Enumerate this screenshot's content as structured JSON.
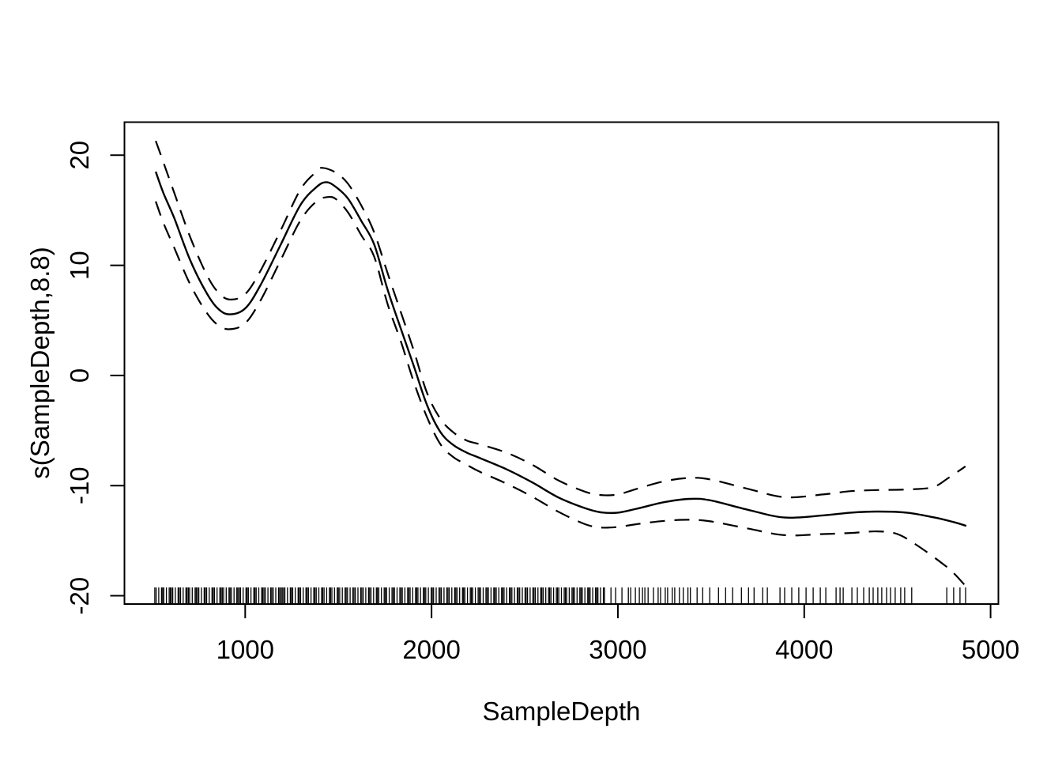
{
  "chart_data": {
    "type": "line",
    "title": "",
    "xlabel": "SampleDepth",
    "ylabel": "s(SampleDepth,8.8)",
    "x_ticks": [
      1000,
      2000,
      3000,
      4000,
      5000
    ],
    "y_ticks": [
      -20,
      -10,
      0,
      10,
      20
    ],
    "xlim": [
      352,
      5042
    ],
    "ylim": [
      -20.75,
      23.0
    ],
    "grid": false,
    "legend": "none",
    "colors": {
      "foreground": "#000000",
      "background": "#ffffff"
    },
    "series": [
      {
        "name": "smooth_fit",
        "linetype": "solid",
        "points": [
          [
            520,
            18.5
          ],
          [
            560,
            16.6
          ],
          [
            619,
            14.3
          ],
          [
            704,
            10.5
          ],
          [
            789,
            7.6
          ],
          [
            852,
            6.1
          ],
          [
            916,
            5.55
          ],
          [
            1001,
            6.1
          ],
          [
            1085,
            8.3
          ],
          [
            1191,
            11.9
          ],
          [
            1297,
            15.5
          ],
          [
            1382,
            17.1
          ],
          [
            1435,
            17.55
          ],
          [
            1488,
            17.1
          ],
          [
            1552,
            16.05
          ],
          [
            1624,
            14.0
          ],
          [
            1692,
            11.9
          ],
          [
            1764,
            7.8
          ],
          [
            1836,
            4.2
          ],
          [
            1904,
            0.9
          ],
          [
            1976,
            -2.7
          ],
          [
            2048,
            -5.15
          ],
          [
            2116,
            -6.3
          ],
          [
            2188,
            -7.0
          ],
          [
            2260,
            -7.5
          ],
          [
            2400,
            -8.5
          ],
          [
            2540,
            -9.7
          ],
          [
            2684,
            -11.1
          ],
          [
            2824,
            -12.05
          ],
          [
            2908,
            -12.42
          ],
          [
            3000,
            -12.45
          ],
          [
            3100,
            -12.1
          ],
          [
            3250,
            -11.5
          ],
          [
            3387,
            -11.2
          ],
          [
            3500,
            -11.35
          ],
          [
            3700,
            -12.2
          ],
          [
            3896,
            -12.9
          ],
          [
            4100,
            -12.7
          ],
          [
            4250,
            -12.45
          ],
          [
            4392,
            -12.35
          ],
          [
            4550,
            -12.45
          ],
          [
            4700,
            -12.9
          ],
          [
            4800,
            -13.3
          ],
          [
            4870,
            -13.65
          ]
        ]
      },
      {
        "name": "upper_confidence",
        "linetype": "dashed",
        "points": [
          [
            520,
            21.3
          ],
          [
            560,
            19.4
          ],
          [
            619,
            16.6
          ],
          [
            704,
            12.6
          ],
          [
            789,
            9.3
          ],
          [
            852,
            7.6
          ],
          [
            916,
            6.9
          ],
          [
            1001,
            7.4
          ],
          [
            1085,
            9.6
          ],
          [
            1191,
            13.2
          ],
          [
            1297,
            16.9
          ],
          [
            1382,
            18.5
          ],
          [
            1414,
            18.85
          ],
          [
            1488,
            18.4
          ],
          [
            1552,
            17.4
          ],
          [
            1624,
            15.4
          ],
          [
            1692,
            13.0
          ],
          [
            1764,
            9.3
          ],
          [
            1836,
            5.7
          ],
          [
            1904,
            2.3
          ],
          [
            1976,
            -1.6
          ],
          [
            2048,
            -3.95
          ],
          [
            2116,
            -5.15
          ],
          [
            2188,
            -5.9
          ],
          [
            2260,
            -6.25
          ],
          [
            2400,
            -7.0
          ],
          [
            2540,
            -8.1
          ],
          [
            2684,
            -9.55
          ],
          [
            2824,
            -10.55
          ],
          [
            2908,
            -10.85
          ],
          [
            3000,
            -10.8
          ],
          [
            3100,
            -10.3
          ],
          [
            3250,
            -9.6
          ],
          [
            3387,
            -9.3
          ],
          [
            3500,
            -9.45
          ],
          [
            3700,
            -10.3
          ],
          [
            3896,
            -11.05
          ],
          [
            4100,
            -10.8
          ],
          [
            4250,
            -10.5
          ],
          [
            4392,
            -10.4
          ],
          [
            4550,
            -10.35
          ],
          [
            4688,
            -10.15
          ],
          [
            4774,
            -9.3
          ],
          [
            4865,
            -8.25
          ]
        ]
      },
      {
        "name": "lower_confidence",
        "linetype": "dashed",
        "points": [
          [
            520,
            15.8
          ],
          [
            560,
            13.9
          ],
          [
            619,
            11.6
          ],
          [
            704,
            8.3
          ],
          [
            789,
            5.8
          ],
          [
            852,
            4.6
          ],
          [
            916,
            4.2
          ],
          [
            1001,
            4.75
          ],
          [
            1085,
            6.9
          ],
          [
            1191,
            10.5
          ],
          [
            1297,
            14.1
          ],
          [
            1382,
            15.8
          ],
          [
            1443,
            16.2
          ],
          [
            1488,
            16.0
          ],
          [
            1552,
            14.8
          ],
          [
            1624,
            12.7
          ],
          [
            1692,
            10.8
          ],
          [
            1764,
            6.5
          ],
          [
            1836,
            3.05
          ],
          [
            1904,
            -0.55
          ],
          [
            1976,
            -3.8
          ],
          [
            2048,
            -6.25
          ],
          [
            2116,
            -7.4
          ],
          [
            2188,
            -8.1
          ],
          [
            2260,
            -8.75
          ],
          [
            2400,
            -9.8
          ],
          [
            2540,
            -11.0
          ],
          [
            2684,
            -12.4
          ],
          [
            2824,
            -13.5
          ],
          [
            2908,
            -13.8
          ],
          [
            3000,
            -13.75
          ],
          [
            3100,
            -13.5
          ],
          [
            3250,
            -13.2
          ],
          [
            3387,
            -13.1
          ],
          [
            3500,
            -13.25
          ],
          [
            3700,
            -13.9
          ],
          [
            3896,
            -14.5
          ],
          [
            4100,
            -14.4
          ],
          [
            4250,
            -14.3
          ],
          [
            4392,
            -14.15
          ],
          [
            4500,
            -14.4
          ],
          [
            4604,
            -15.4
          ],
          [
            4744,
            -17.1
          ],
          [
            4800,
            -17.9
          ],
          [
            4868,
            -19.15
          ]
        ]
      }
    ],
    "rug_x": [
      515,
      522,
      536,
      551,
      557,
      563,
      577,
      592,
      598,
      604,
      611,
      625,
      640,
      646,
      653,
      667,
      682,
      688,
      695,
      702,
      716,
      731,
      737,
      744,
      751,
      765,
      780,
      786,
      793,
      807,
      822,
      828,
      835,
      849,
      864,
      870,
      877,
      884,
      898,
      913,
      919,
      926,
      940,
      955,
      961,
      968,
      975,
      989,
      1004,
      1010,
      1017,
      1031,
      1046,
      1052,
      1059,
      1073,
      1088,
      1094,
      1101,
      1108,
      1122,
      1137,
      1143,
      1150,
      1164,
      1179,
      1185,
      1192,
      1199,
      1206,
      1213,
      1227,
      1242,
      1248,
      1255,
      1269,
      1284,
      1290,
      1297,
      1311,
      1326,
      1332,
      1339,
      1353,
      1368,
      1374,
      1381,
      1395,
      1410,
      1416,
      1423,
      1437,
      1452,
      1458,
      1465,
      1479,
      1494,
      1500,
      1507,
      1521,
      1536,
      1542,
      1549,
      1563,
      1578,
      1584,
      1591,
      1605,
      1620,
      1626,
      1633,
      1647,
      1662,
      1668,
      1675,
      1689,
      1704,
      1710,
      1717,
      1731,
      1746,
      1752,
      1759,
      1773,
      1788,
      1794,
      1801,
      1815,
      1830,
      1836,
      1843,
      1857,
      1872,
      1878,
      1885,
      1899,
      1914,
      1920,
      1927,
      1941,
      1956,
      1962,
      1969,
      1983,
      1998,
      2004,
      2011,
      2025,
      2040,
      2046,
      2053,
      2067,
      2082,
      2088,
      2095,
      2109,
      2124,
      2130,
      2137,
      2151,
      2166,
      2172,
      2179,
      2193,
      2208,
      2214,
      2221,
      2235,
      2250,
      2256,
      2263,
      2277,
      2292,
      2298,
      2305,
      2319,
      2334,
      2340,
      2347,
      2361,
      2376,
      2382,
      2389,
      2403,
      2418,
      2424,
      2431,
      2445,
      2460,
      2466,
      2473,
      2487,
      2502,
      2508,
      2515,
      2529,
      2544,
      2550,
      2557,
      2571,
      2586,
      2592,
      2599,
      2613,
      2628,
      2634,
      2641,
      2655,
      2670,
      2676,
      2683,
      2697,
      2712,
      2718,
      2725,
      2739,
      2754,
      2760,
      2767,
      2781,
      2796,
      2802,
      2809,
      2823,
      2838,
      2844,
      2851,
      2865,
      2880,
      2886,
      2893,
      2907,
      2922,
      2928,
      2963,
      2988,
      3022,
      3056,
      3069,
      3094,
      3115,
      3132,
      3145,
      3162,
      3191,
      3216,
      3229,
      3254,
      3267,
      3292,
      3305,
      3330,
      3351,
      3376,
      3389,
      3425,
      3455,
      3493,
      3540,
      3578,
      3616,
      3663,
      3701,
      3731,
      3777,
      3802,
      3870,
      3895,
      3933,
      3971,
      4010,
      4048,
      4086,
      4116,
      4171,
      4192,
      4209,
      4256,
      4285,
      4319,
      4349,
      4370,
      4395,
      4416,
      4442,
      4463,
      4488,
      4518,
      4539,
      4577,
      4765,
      4802,
      4836,
      4866
    ]
  }
}
